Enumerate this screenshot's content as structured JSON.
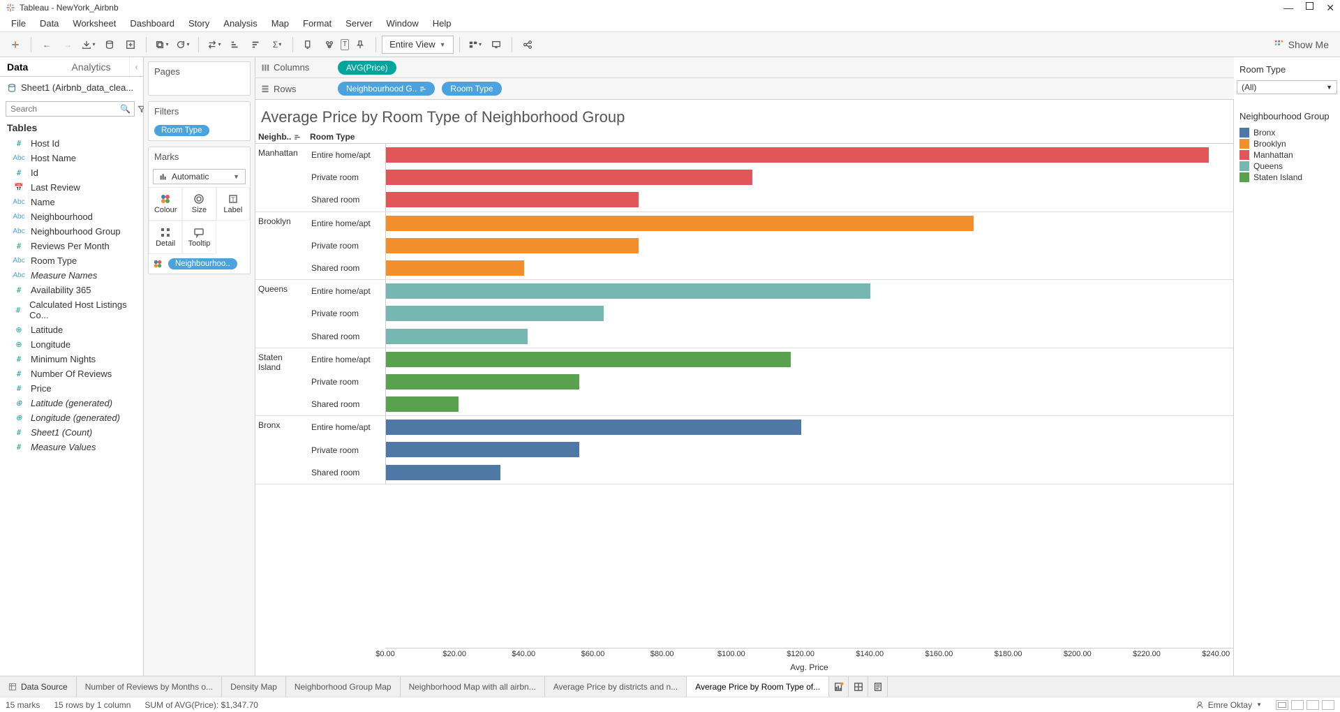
{
  "window": {
    "title": "Tableau - NewYork_Airbnb"
  },
  "menu": [
    "File",
    "Data",
    "Worksheet",
    "Dashboard",
    "Story",
    "Analysis",
    "Map",
    "Format",
    "Server",
    "Window",
    "Help"
  ],
  "toolbar": {
    "view_mode": "Entire View",
    "show_me": "Show Me"
  },
  "data_panel": {
    "tabs": [
      "Data",
      "Analytics"
    ],
    "source": "Sheet1 (Airbnb_data_clea...",
    "search_placeholder": "Search",
    "tables_label": "Tables",
    "fields": [
      {
        "icon": "num",
        "label": "Host Id"
      },
      {
        "icon": "abc",
        "label": "Host Name"
      },
      {
        "icon": "num",
        "label": "Id"
      },
      {
        "icon": "date",
        "label": "Last Review"
      },
      {
        "icon": "abc",
        "label": "Name"
      },
      {
        "icon": "abc",
        "label": "Neighbourhood"
      },
      {
        "icon": "abc",
        "label": "Neighbourhood Group"
      },
      {
        "icon": "num",
        "label": "Reviews Per Month"
      },
      {
        "icon": "abc",
        "label": "Room Type"
      },
      {
        "icon": "abc",
        "label": "Measure Names",
        "italic": true
      },
      {
        "icon": "num",
        "label": "Availability 365"
      },
      {
        "icon": "num",
        "label": "Calculated Host Listings Co..."
      },
      {
        "icon": "geo",
        "label": "Latitude"
      },
      {
        "icon": "geo",
        "label": "Longitude"
      },
      {
        "icon": "num",
        "label": "Minimum Nights"
      },
      {
        "icon": "num",
        "label": "Number Of Reviews"
      },
      {
        "icon": "num",
        "label": "Price"
      },
      {
        "icon": "geo",
        "label": "Latitude (generated)",
        "italic": true
      },
      {
        "icon": "geo",
        "label": "Longitude (generated)",
        "italic": true
      },
      {
        "icon": "num",
        "label": "Sheet1 (Count)",
        "italic": true
      },
      {
        "icon": "num",
        "label": "Measure Values",
        "italic": true
      }
    ]
  },
  "shelves": {
    "pages": "Pages",
    "filters": "Filters",
    "filters_pill": "Room Type",
    "marks": "Marks",
    "mark_type": "Automatic",
    "mark_cells": [
      "Colour",
      "Size",
      "Label",
      "Detail",
      "Tooltip"
    ],
    "color_pill": "Neighbourhoo.."
  },
  "cr": {
    "columns_label": "Columns",
    "columns_pill": "AVG(Price)",
    "rows_label": "Rows",
    "rows_pill1": "Neighbourhood G..",
    "rows_pill2": "Room Type"
  },
  "viz": {
    "title": "Average Price by Room Type of Neighborhood Group",
    "header1": "Neighb..",
    "header2": "Room Type",
    "axis_label": "Avg. Price",
    "x_max": 245,
    "ticks": [
      "$0.00",
      "$20.00",
      "$40.00",
      "$60.00",
      "$80.00",
      "$100.00",
      "$120.00",
      "$140.00",
      "$160.00",
      "$180.00",
      "$200.00",
      "$220.00",
      "$240.00"
    ],
    "tick_values": [
      0,
      20,
      40,
      60,
      80,
      100,
      120,
      140,
      160,
      180,
      200,
      220,
      240
    ],
    "colors": {
      "Bronx": "#4e79a7",
      "Brooklyn": "#f28e2b",
      "Manhattan": "#e15759",
      "Queens": "#76b7b2",
      "Staten Island": "#59a14f"
    },
    "groups": [
      {
        "name": "Manhattan",
        "rows": [
          {
            "room": "Entire home/apt",
            "value": 238
          },
          {
            "room": "Private room",
            "value": 106
          },
          {
            "room": "Shared room",
            "value": 73
          }
        ]
      },
      {
        "name": "Brooklyn",
        "rows": [
          {
            "room": "Entire home/apt",
            "value": 170
          },
          {
            "room": "Private room",
            "value": 73
          },
          {
            "room": "Shared room",
            "value": 40
          }
        ]
      },
      {
        "name": "Queens",
        "rows": [
          {
            "room": "Entire home/apt",
            "value": 140
          },
          {
            "room": "Private room",
            "value": 63
          },
          {
            "room": "Shared room",
            "value": 41
          }
        ]
      },
      {
        "name": "Staten Island",
        "rows": [
          {
            "room": "Entire home/apt",
            "value": 117
          },
          {
            "room": "Private room",
            "value": 56
          },
          {
            "room": "Shared room",
            "value": 21
          }
        ]
      },
      {
        "name": "Bronx",
        "rows": [
          {
            "room": "Entire home/apt",
            "value": 120
          },
          {
            "room": "Private room",
            "value": 56
          },
          {
            "room": "Shared room",
            "value": 33
          }
        ]
      }
    ]
  },
  "right": {
    "filter_title": "Room Type",
    "filter_value": "(All)",
    "legend_title": "Neighbourhood Group",
    "legend": [
      {
        "label": "Bronx",
        "color": "#4e79a7"
      },
      {
        "label": "Brooklyn",
        "color": "#f28e2b"
      },
      {
        "label": "Manhattan",
        "color": "#e15759"
      },
      {
        "label": "Queens",
        "color": "#76b7b2"
      },
      {
        "label": "Staten Island",
        "color": "#59a14f"
      }
    ]
  },
  "sheet_tabs": {
    "ds": "Data Source",
    "tabs": [
      "Number of Reviews by Months o...",
      "Density Map",
      "Neighborhood Group Map",
      "Neighborhood Map with all airbn...",
      "Average Price by districts and n...",
      "Average Price by Room Type of..."
    ],
    "active_index": 5
  },
  "status": {
    "marks": "15 marks",
    "rows": "15 rows by 1 column",
    "sum": "SUM of AVG(Price): $1,347.70",
    "user": "Emre Oktay"
  }
}
